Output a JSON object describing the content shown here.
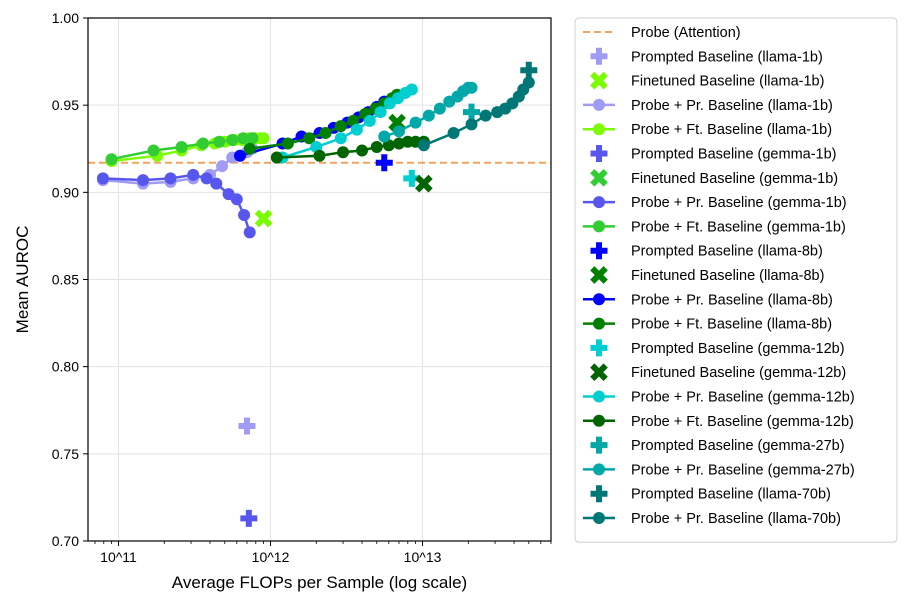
{
  "chart_data": {
    "type": "line",
    "title": "",
    "xlabel": "Average FLOPs per Sample (log scale)",
    "ylabel": "Mean AUROC",
    "xscale": "log",
    "xlim": [
      63000000000.0,
      70000000000000.0
    ],
    "ylim": [
      0.7,
      1.0
    ],
    "grid": true,
    "legend_location": "outside-right",
    "x_tick_values": [
      100000000000.0,
      1000000000000.0,
      10000000000000.0
    ],
    "x_tick_labels": [
      "10^11",
      "10^12",
      "10^13"
    ],
    "y_tick_values": [
      0.7,
      0.75,
      0.8,
      0.85,
      0.9,
      0.95,
      1.0
    ],
    "y_tick_labels": [
      "0.70",
      "0.75",
      "0.80",
      "0.85",
      "0.90",
      "0.95",
      "1.00"
    ],
    "reference_line": {
      "name": "Probe (Attention)",
      "y": 0.917,
      "color": "#f5a35c",
      "style": "dashed"
    },
    "series": [
      {
        "name": "Prompted Baseline (llama-1b)",
        "kind": "marker",
        "marker": "plus",
        "color": "#a09cf5",
        "points": [
          [
            700000000000.0,
            0.766
          ]
        ]
      },
      {
        "name": "Finetuned Baseline (llama-1b)",
        "kind": "marker",
        "marker": "x",
        "color": "#7cfc00",
        "points": [
          [
            900000000000.0,
            0.885
          ]
        ]
      },
      {
        "name": "Probe + Pr. Baseline (llama-1b)",
        "kind": "line",
        "marker": "circle",
        "color": "#a09cf5",
        "points": [
          [
            79000000000.0,
            0.907
          ],
          [
            145000000000.0,
            0.905
          ],
          [
            220000000000.0,
            0.906
          ],
          [
            310000000000.0,
            0.908
          ],
          [
            400000000000.0,
            0.91
          ],
          [
            480000000000.0,
            0.915
          ],
          [
            560000000000.0,
            0.92
          ],
          [
            630000000000.0,
            0.921
          ],
          [
            700000000000.0,
            0.923
          ],
          [
            760000000000.0,
            0.925
          ]
        ]
      },
      {
        "name": "Probe + Ft. Baseline (llama-1b)",
        "kind": "line",
        "marker": "circle",
        "color": "#7cfc00",
        "points": [
          [
            90000000000.0,
            0.918
          ],
          [
            180000000000.0,
            0.921
          ],
          [
            260000000000.0,
            0.924
          ],
          [
            350000000000.0,
            0.927
          ],
          [
            430000000000.0,
            0.928
          ],
          [
            500000000000.0,
            0.929
          ],
          [
            580000000000.0,
            0.93
          ],
          [
            650000000000.0,
            0.93
          ],
          [
            720000000000.0,
            0.931
          ],
          [
            790000000000.0,
            0.931
          ],
          [
            860000000000.0,
            0.931
          ],
          [
            900000000000.0,
            0.931
          ]
        ]
      },
      {
        "name": "Prompted Baseline (gemma-1b)",
        "kind": "marker",
        "marker": "plus",
        "color": "#5757f0",
        "points": [
          [
            720000000000.0,
            0.713
          ]
        ]
      },
      {
        "name": "Finetuned Baseline (gemma-1b)",
        "kind": "marker",
        "marker": "x",
        "color": "#32cd32",
        "points": []
      },
      {
        "name": "Probe + Pr. Baseline (gemma-1b)",
        "kind": "line",
        "marker": "circle",
        "color": "#5757f0",
        "points": [
          [
            79000000000.0,
            0.908
          ],
          [
            145000000000.0,
            0.907
          ],
          [
            220000000000.0,
            0.908
          ],
          [
            310000000000.0,
            0.91
          ],
          [
            380000000000.0,
            0.908
          ],
          [
            440000000000.0,
            0.905
          ],
          [
            530000000000.0,
            0.899
          ],
          [
            600000000000.0,
            0.896
          ],
          [
            670000000000.0,
            0.887
          ],
          [
            730000000000.0,
            0.877
          ]
        ]
      },
      {
        "name": "Probe + Ft. Baseline (gemma-1b)",
        "kind": "line",
        "marker": "circle",
        "color": "#32cd32",
        "points": [
          [
            90000000000.0,
            0.919
          ],
          [
            170000000000.0,
            0.924
          ],
          [
            260000000000.0,
            0.926
          ],
          [
            360000000000.0,
            0.928
          ],
          [
            460000000000.0,
            0.929
          ],
          [
            560000000000.0,
            0.93
          ],
          [
            660000000000.0,
            0.931
          ],
          [
            760000000000.0,
            0.931
          ]
        ]
      },
      {
        "name": "Prompted Baseline (llama-8b)",
        "kind": "marker",
        "marker": "plus",
        "color": "#0000ff",
        "points": [
          [
            5600000000000.0,
            0.917
          ]
        ]
      },
      {
        "name": "Finetuned Baseline (llama-8b)",
        "kind": "marker",
        "marker": "x",
        "color": "#008000",
        "points": [
          [
            6800000000000.0,
            0.94
          ]
        ]
      },
      {
        "name": "Probe + Pr. Baseline (llama-8b)",
        "kind": "line",
        "marker": "circle",
        "color": "#0000ff",
        "points": [
          [
            630000000000.0,
            0.921
          ],
          [
            1200000000000.0,
            0.928
          ],
          [
            1600000000000.0,
            0.932
          ],
          [
            2100000000000.0,
            0.934
          ],
          [
            2600000000000.0,
            0.937
          ],
          [
            3200000000000.0,
            0.94
          ],
          [
            3800000000000.0,
            0.943
          ],
          [
            4400000000000.0,
            0.946
          ],
          [
            5000000000000.0,
            0.949
          ],
          [
            5600000000000.0,
            0.952
          ]
        ]
      },
      {
        "name": "Probe + Ft. Baseline (llama-8b)",
        "kind": "line",
        "marker": "circle",
        "color": "#008000",
        "points": [
          [
            730000000000.0,
            0.925
          ],
          [
            1300000000000.0,
            0.928
          ],
          [
            1800000000000.0,
            0.931
          ],
          [
            2300000000000.0,
            0.934
          ],
          [
            2900000000000.0,
            0.938
          ],
          [
            3500000000000.0,
            0.941
          ],
          [
            4200000000000.0,
            0.945
          ],
          [
            4900000000000.0,
            0.948
          ],
          [
            5600000000000.0,
            0.951
          ],
          [
            6300000000000.0,
            0.954
          ],
          [
            6800000000000.0,
            0.956
          ]
        ]
      },
      {
        "name": "Prompted Baseline (gemma-12b)",
        "kind": "marker",
        "marker": "plus",
        "color": "#00ced1",
        "points": [
          [
            8500000000000.0,
            0.908
          ]
        ]
      },
      {
        "name": "Finetuned Baseline (gemma-12b)",
        "kind": "marker",
        "marker": "x",
        "color": "#006400",
        "points": [
          [
            10200000000000.0,
            0.905
          ]
        ]
      },
      {
        "name": "Probe + Pr. Baseline (gemma-12b)",
        "kind": "line",
        "marker": "circle",
        "color": "#00ced1",
        "points": [
          [
            1200000000000.0,
            0.92
          ],
          [
            2000000000000.0,
            0.926
          ],
          [
            2900000000000.0,
            0.931
          ],
          [
            3700000000000.0,
            0.936
          ],
          [
            4500000000000.0,
            0.941
          ],
          [
            5300000000000.0,
            0.946
          ],
          [
            6100000000000.0,
            0.951
          ],
          [
            6900000000000.0,
            0.954
          ],
          [
            7700000000000.0,
            0.957
          ],
          [
            8500000000000.0,
            0.959
          ]
        ]
      },
      {
        "name": "Probe + Ft. Baseline (gemma-12b)",
        "kind": "line",
        "marker": "circle",
        "color": "#006400",
        "points": [
          [
            1100000000000.0,
            0.92
          ],
          [
            2100000000000.0,
            0.921
          ],
          [
            3000000000000.0,
            0.923
          ],
          [
            4000000000000.0,
            0.924
          ],
          [
            5000000000000.0,
            0.926
          ],
          [
            6000000000000.0,
            0.927
          ],
          [
            7000000000000.0,
            0.928
          ],
          [
            8000000000000.0,
            0.929
          ],
          [
            9000000000000.0,
            0.929
          ],
          [
            10200000000000.0,
            0.929
          ]
        ]
      },
      {
        "name": "Prompted Baseline (gemma-27b)",
        "kind": "marker",
        "marker": "plus",
        "color": "#00a8a8",
        "points": [
          [
            21000000000000.0,
            0.946
          ]
        ]
      },
      {
        "name": "Probe + Pr. Baseline (gemma-27b)",
        "kind": "line",
        "marker": "circle",
        "color": "#00a8a8",
        "points": [
          [
            5600000000000.0,
            0.932
          ],
          [
            7000000000000.0,
            0.935
          ],
          [
            9000000000000.0,
            0.94
          ],
          [
            11000000000000.0,
            0.944
          ],
          [
            13000000000000.0,
            0.948
          ],
          [
            15000000000000.0,
            0.952
          ],
          [
            17000000000000.0,
            0.955
          ],
          [
            18500000000000.0,
            0.958
          ],
          [
            20000000000000.0,
            0.96
          ],
          [
            21000000000000.0,
            0.96
          ]
        ]
      },
      {
        "name": "Prompted Baseline (llama-70b)",
        "kind": "marker",
        "marker": "plus",
        "color": "#007777",
        "points": [
          [
            50000000000000.0,
            0.97
          ]
        ]
      },
      {
        "name": "Probe + Pr. Baseline (llama-70b)",
        "kind": "line",
        "marker": "circle",
        "color": "#007777",
        "points": [
          [
            10200000000000.0,
            0.927
          ],
          [
            16000000000000.0,
            0.934
          ],
          [
            21000000000000.0,
            0.939
          ],
          [
            26000000000000.0,
            0.944
          ],
          [
            31000000000000.0,
            0.946
          ],
          [
            35000000000000.0,
            0.948
          ],
          [
            39000000000000.0,
            0.951
          ],
          [
            43000000000000.0,
            0.955
          ],
          [
            46000000000000.0,
            0.959
          ],
          [
            50000000000000.0,
            0.963
          ]
        ]
      }
    ]
  }
}
